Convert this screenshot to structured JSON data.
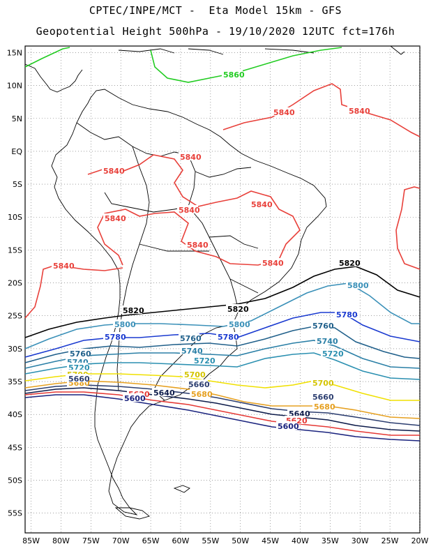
{
  "title": {
    "line1": "CPTEC/INPE/MCT -  Eta Model 15km - GFS",
    "line2": "Geopotential Height 500hPa - 19/10/2020 12UTC fct=176h"
  },
  "axes": {
    "lat_labels": [
      "15N",
      "10N",
      "5N",
      "EQ",
      "5S",
      "10S",
      "15S",
      "20S",
      "25S",
      "30S",
      "35S",
      "40S",
      "45S",
      "50S",
      "55S"
    ],
    "lon_labels": [
      "85W",
      "80W",
      "75W",
      "70W",
      "65W",
      "60W",
      "55W",
      "50W",
      "45W",
      "40W",
      "35W",
      "30W",
      "25W",
      "20W"
    ],
    "lon_range": [
      -86,
      -20
    ],
    "lat_range": [
      -58,
      16
    ]
  },
  "map": {
    "type": "contour",
    "variable": "Geopotential Height 500hPa (gpm)",
    "levels": [
      {
        "value": 5600,
        "label": "5600",
        "color": "#1a237e"
      },
      {
        "value": 5620,
        "label": "5620",
        "color": "#e53935"
      },
      {
        "value": 5640,
        "label": "5640",
        "color": "#0d1b4a"
      },
      {
        "value": 5660,
        "label": "5660",
        "color": "#2c3e70"
      },
      {
        "value": 5680,
        "label": "5680",
        "color": "#e6a020"
      },
      {
        "value": 5700,
        "label": "5700",
        "color": "#f0e000"
      },
      {
        "value": 5720,
        "label": "5720",
        "color": "#2a8fb0"
      },
      {
        "value": 5740,
        "label": "5740",
        "color": "#2a7fa6"
      },
      {
        "value": 5760,
        "label": "5760",
        "color": "#1f5f8a"
      },
      {
        "value": 5780,
        "label": "5780",
        "color": "#1a3ad0"
      },
      {
        "value": 5800,
        "label": "5800",
        "color": "#3a90b8"
      },
      {
        "value": 5820,
        "label": "5820",
        "color": "#000000"
      },
      {
        "value": 5840,
        "label": "5840",
        "color": "#e8403a"
      },
      {
        "value": 5860,
        "label": "5860",
        "color": "#22cc22"
      }
    ]
  }
}
